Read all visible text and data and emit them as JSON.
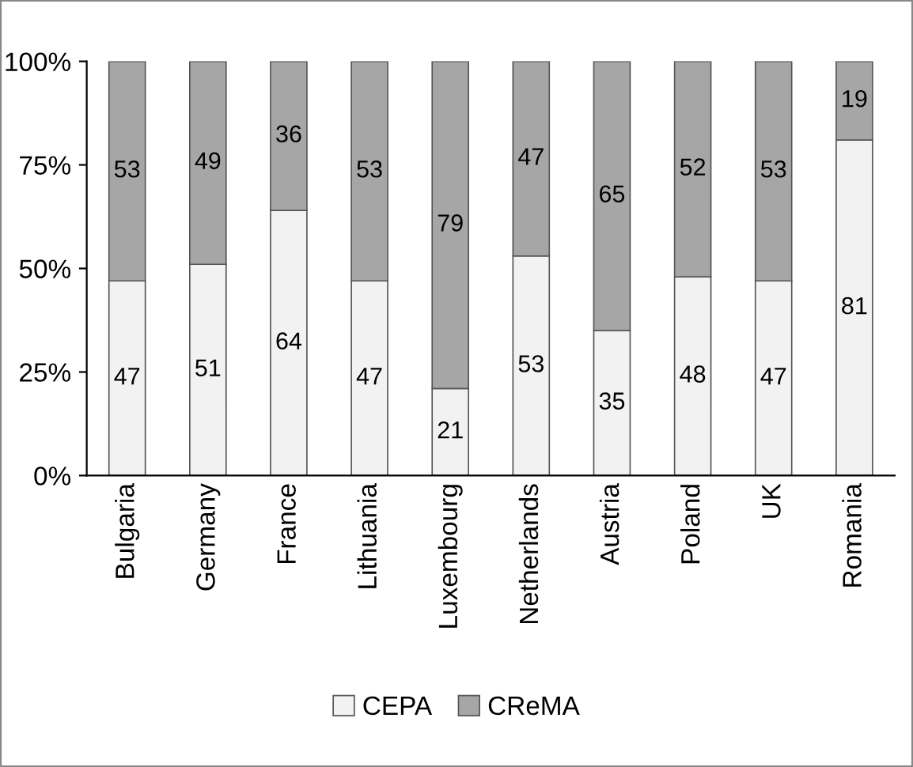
{
  "chart_data": {
    "type": "bar",
    "stacked": true,
    "categories": [
      "Bulgaria",
      "Germany",
      "France",
      "Lithuania",
      "Luxembourg",
      "Netherlands",
      "Austria",
      "Poland",
      "UK",
      "Romania"
    ],
    "series": [
      {
        "name": "CEPA",
        "color": "#f2f2f2",
        "values": [
          47,
          51,
          64,
          47,
          21,
          53,
          35,
          48,
          47,
          81
        ]
      },
      {
        "name": "CReMA",
        "color": "#a6a6a6",
        "values": [
          53,
          49,
          36,
          53,
          79,
          47,
          65,
          52,
          53,
          19
        ]
      }
    ],
    "ylim": [
      0,
      100
    ],
    "yticks": [
      {
        "value": 0,
        "label": "0%"
      },
      {
        "value": 25,
        "label": "25%"
      },
      {
        "value": 50,
        "label": "50%"
      },
      {
        "value": 75,
        "label": "75%"
      },
      {
        "value": 100,
        "label": "100%"
      }
    ],
    "data_labels": true,
    "legend": "bottom",
    "grid": false
  }
}
